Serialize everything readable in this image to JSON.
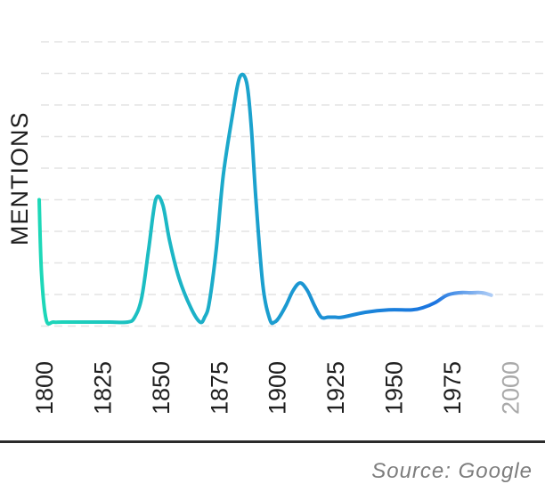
{
  "chart_data": {
    "type": "line",
    "ylabel": "MENTIONS",
    "xlabel": "",
    "x_ticks": [
      "1800",
      "1825",
      "1850",
      "1875",
      "1900",
      "1925",
      "1950",
      "1975",
      "2000"
    ],
    "x_range": [
      1800,
      2000
    ],
    "ylim": [
      0,
      100
    ],
    "grid": true,
    "series": [
      {
        "x": [
          1800,
          1801,
          1803,
          1806,
          1810,
          1820,
          1830,
          1838,
          1841,
          1844,
          1847,
          1850,
          1853,
          1856,
          1860,
          1865,
          1869,
          1871,
          1873,
          1876,
          1879,
          1883,
          1886,
          1889,
          1891,
          1893,
          1896,
          1899,
          1901,
          1903,
          1906,
          1909,
          1912,
          1915,
          1918,
          1921,
          1924,
          1927,
          1930,
          1940,
          1950,
          1960,
          1965,
          1970,
          1975,
          1980,
          1985,
          1990,
          1994
        ],
        "y": [
          50,
          20,
          1,
          0,
          0,
          0,
          0,
          0,
          2,
          10,
          30,
          50,
          48,
          33,
          18,
          6,
          0,
          2,
          8,
          30,
          60,
          85,
          100,
          98,
          80,
          50,
          15,
          1,
          0,
          2,
          7,
          13,
          16,
          13,
          7,
          2,
          2,
          2,
          2,
          4,
          5,
          5,
          6,
          8,
          11,
          12,
          12,
          12,
          11
        ]
      }
    ],
    "colors": [
      "#1dd8b8",
      "#1a74e0",
      "#cfe0fb"
    ]
  },
  "source": "Source: Google"
}
